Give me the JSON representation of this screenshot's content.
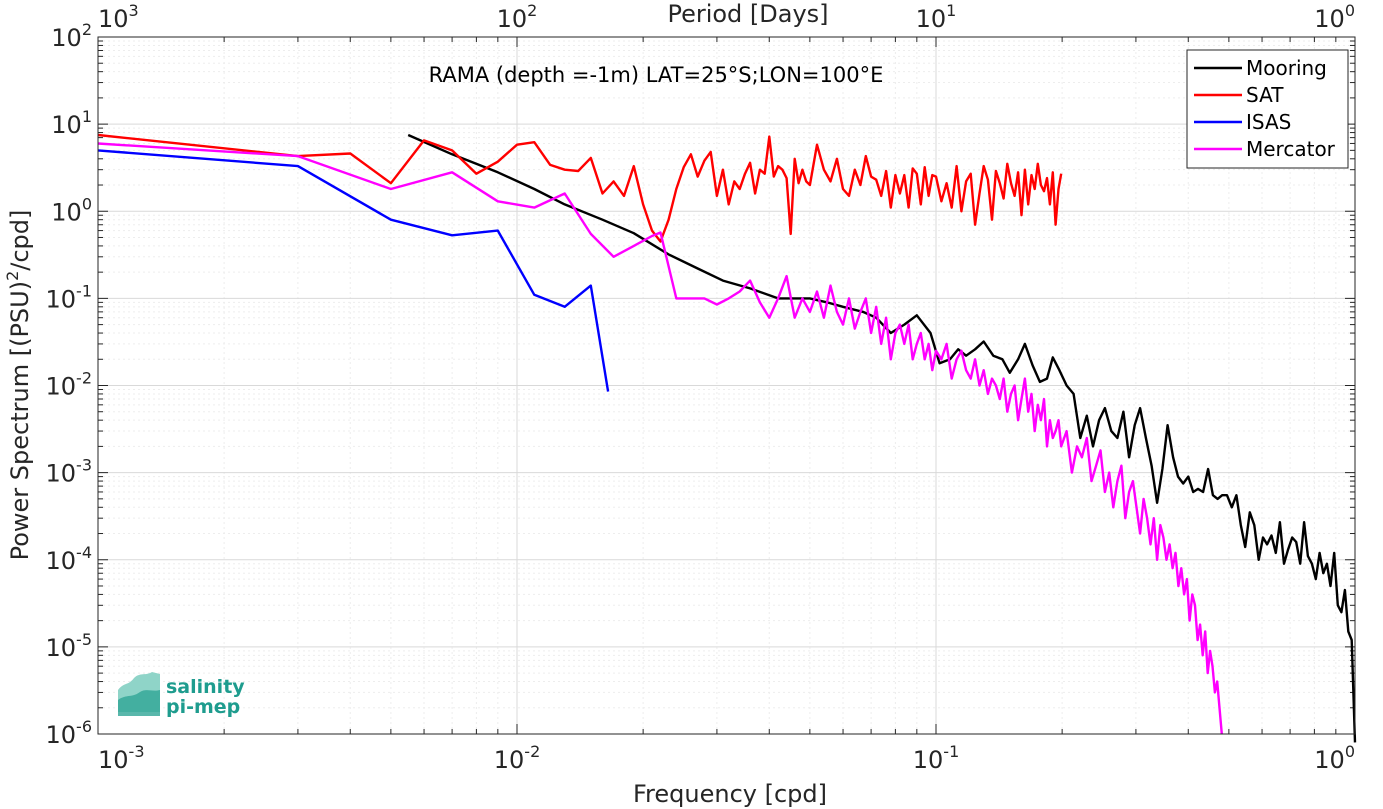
{
  "chart_data": {
    "type": "line",
    "title": "RAMA (depth =-1m) LAT=25°S;LON=100°E",
    "xlabel": "Frequency [cpd]",
    "ylabel_main": "Power Spectrum [(PSU)",
    "ylabel_sup": "2",
    "ylabel_tail": "/cpd]",
    "top_xlabel": "Period [Days]",
    "xscale": "log",
    "yscale": "log",
    "xlim": [
      0.001,
      1
    ],
    "ylim": [
      1e-06,
      100
    ],
    "grid": true,
    "legend_position": "top-right",
    "x_ticks": [
      {
        "base": "10",
        "exp": "-3"
      },
      {
        "base": "10",
        "exp": "-2"
      },
      {
        "base": "10",
        "exp": "-1"
      },
      {
        "base": "10",
        "exp": "0"
      }
    ],
    "top_ticks": [
      {
        "base": "10",
        "exp": "3"
      },
      {
        "base": "10",
        "exp": "2"
      },
      {
        "base": "10",
        "exp": "1"
      },
      {
        "base": "10",
        "exp": "0"
      }
    ],
    "y_ticks": [
      {
        "base": "10",
        "exp": "2"
      },
      {
        "base": "10",
        "exp": "1"
      },
      {
        "base": "10",
        "exp": "0"
      },
      {
        "base": "10",
        "exp": "-1"
      },
      {
        "base": "10",
        "exp": "-2"
      },
      {
        "base": "10",
        "exp": "-3"
      },
      {
        "base": "10",
        "exp": "-4"
      },
      {
        "base": "10",
        "exp": "-5"
      },
      {
        "base": "10",
        "exp": "-6"
      }
    ],
    "series": [
      {
        "name": "Mooring",
        "color": "#000000",
        "x": [
          0.0055,
          0.007,
          0.009,
          0.011,
          0.013,
          0.016,
          0.019,
          0.023,
          0.027,
          0.031,
          0.036,
          0.042,
          0.046,
          0.05,
          0.055,
          0.06,
          0.067,
          0.072,
          0.078,
          0.084,
          0.09,
          0.097,
          0.102,
          0.108,
          0.113,
          0.118,
          0.124,
          0.13,
          0.137,
          0.144,
          0.15,
          0.157,
          0.163,
          0.17,
          0.177,
          0.184,
          0.19,
          0.197,
          0.205,
          0.213,
          0.221,
          0.229,
          0.237,
          0.245,
          0.253,
          0.262,
          0.271,
          0.28,
          0.289,
          0.298,
          0.307,
          0.317,
          0.327,
          0.337,
          0.347,
          0.357,
          0.368,
          0.378,
          0.389,
          0.4,
          0.411,
          0.422,
          0.434,
          0.446,
          0.458,
          0.47,
          0.482,
          0.495,
          0.508,
          0.521,
          0.534,
          0.547,
          0.561,
          0.575,
          0.589,
          0.603,
          0.617,
          0.632,
          0.647,
          0.662,
          0.677,
          0.692,
          0.708,
          0.724,
          0.74,
          0.756,
          0.772,
          0.789,
          0.806,
          0.823,
          0.84,
          0.857,
          0.874,
          0.892,
          0.91,
          0.928,
          0.946,
          0.964,
          0.982,
          1.0
        ],
        "y": [
          7.5,
          4.5,
          2.8,
          1.8,
          1.2,
          0.8,
          0.56,
          0.32,
          0.22,
          0.16,
          0.13,
          0.1,
          0.1,
          0.1,
          0.09,
          0.08,
          0.07,
          0.06,
          0.04,
          0.05,
          0.064,
          0.04,
          0.018,
          0.02,
          0.026,
          0.022,
          0.026,
          0.032,
          0.022,
          0.02,
          0.014,
          0.02,
          0.03,
          0.017,
          0.011,
          0.012,
          0.021,
          0.015,
          0.01,
          0.008,
          0.0025,
          0.0045,
          0.002,
          0.004,
          0.0055,
          0.003,
          0.0025,
          0.005,
          0.0015,
          0.0035,
          0.0055,
          0.0025,
          0.0012,
          0.00045,
          0.0011,
          0.0035,
          0.0015,
          0.0009,
          0.00075,
          0.0009,
          0.0006,
          0.00065,
          0.0006,
          0.0011,
          0.00055,
          0.0005,
          0.00055,
          0.00055,
          0.0004,
          0.00055,
          0.00025,
          0.00014,
          0.00035,
          0.00025,
          0.0001,
          0.00018,
          0.00015,
          0.00019,
          0.00012,
          0.00027,
          9e-05,
          0.00013,
          0.00018,
          0.00016,
          9e-05,
          0.00027,
          0.00011,
          9e-05,
          6e-05,
          0.00012,
          7e-05,
          9e-05,
          5e-05,
          0.00012,
          3e-05,
          2.5e-05,
          4.5e-05,
          1.5e-05,
          1.2e-05,
          8e-07
        ]
      },
      {
        "name": "SAT",
        "color": "#ff0000",
        "x": [
          0.001,
          0.003,
          0.004,
          0.005,
          0.006,
          0.007,
          0.008,
          0.009,
          0.01,
          0.011,
          0.012,
          0.013,
          0.014,
          0.015,
          0.016,
          0.017,
          0.018,
          0.019,
          0.02,
          0.021,
          0.022,
          0.023,
          0.024,
          0.025,
          0.026,
          0.027,
          0.028,
          0.029,
          0.03,
          0.031,
          0.032,
          0.033,
          0.034,
          0.035,
          0.036,
          0.037,
          0.038,
          0.039,
          0.04,
          0.041,
          0.042,
          0.043,
          0.044,
          0.045,
          0.046,
          0.047,
          0.048,
          0.049,
          0.05,
          0.052,
          0.054,
          0.056,
          0.058,
          0.06,
          0.062,
          0.064,
          0.066,
          0.068,
          0.07,
          0.072,
          0.074,
          0.076,
          0.078,
          0.08,
          0.082,
          0.084,
          0.086,
          0.088,
          0.09,
          0.092,
          0.094,
          0.096,
          0.098,
          0.1,
          0.103,
          0.106,
          0.109,
          0.112,
          0.115,
          0.118,
          0.121,
          0.124,
          0.127,
          0.13,
          0.133,
          0.136,
          0.139,
          0.142,
          0.145,
          0.148,
          0.151,
          0.154,
          0.157,
          0.16,
          0.163,
          0.166,
          0.169,
          0.172,
          0.175,
          0.178,
          0.181,
          0.184,
          0.187,
          0.19,
          0.193,
          0.196,
          0.199
        ],
        "y": [
          7.5,
          4.3,
          4.6,
          2.1,
          6.5,
          5.0,
          2.7,
          3.7,
          5.8,
          6.2,
          3.4,
          3.0,
          2.9,
          4.1,
          1.6,
          2.2,
          1.5,
          3.3,
          1.2,
          0.6,
          0.45,
          0.8,
          1.8,
          3.2,
          4.5,
          2.5,
          3.8,
          4.8,
          1.5,
          3.0,
          1.2,
          2.2,
          1.8,
          2.7,
          3.6,
          1.6,
          3.0,
          2.7,
          7.2,
          2.5,
          3.3,
          3.0,
          2.4,
          0.55,
          4.0,
          2.1,
          3.0,
          2.2,
          2.0,
          5.8,
          3.0,
          2.2,
          4.0,
          1.8,
          1.5,
          3.0,
          2.0,
          4.3,
          2.5,
          2.3,
          1.5,
          2.9,
          1.1,
          2.6,
          1.6,
          2.6,
          1.1,
          3.1,
          2.7,
          1.2,
          3.2,
          1.5,
          2.6,
          2.5,
          1.3,
          2.1,
          1.1,
          3.3,
          1.0,
          2.2,
          2.7,
          0.7,
          1.6,
          3.3,
          2.3,
          0.8,
          2.9,
          2.1,
          1.4,
          3.5,
          2.1,
          1.5,
          2.8,
          0.9,
          3.0,
          1.2,
          2.6,
          1.8,
          3.5,
          2.0,
          1.7,
          2.4,
          1.2,
          2.8,
          0.7,
          1.8,
          2.7
        ]
      },
      {
        "name": "ISAS",
        "color": "#0000ff",
        "x": [
          0.001,
          0.003,
          0.005,
          0.007,
          0.009,
          0.011,
          0.013,
          0.015,
          0.0165
        ],
        "y": [
          5.0,
          3.3,
          0.8,
          0.53,
          0.6,
          0.11,
          0.08,
          0.14,
          0.0085
        ]
      },
      {
        "name": "Mercator",
        "color": "#ff00ff",
        "x": [
          0.001,
          0.003,
          0.005,
          0.007,
          0.009,
          0.011,
          0.013,
          0.015,
          0.017,
          0.019,
          0.021,
          0.022,
          0.024,
          0.026,
          0.028,
          0.03,
          0.032,
          0.034,
          0.036,
          0.038,
          0.04,
          0.042,
          0.044,
          0.046,
          0.048,
          0.05,
          0.052,
          0.054,
          0.056,
          0.058,
          0.06,
          0.062,
          0.064,
          0.066,
          0.068,
          0.07,
          0.072,
          0.074,
          0.076,
          0.078,
          0.08,
          0.082,
          0.084,
          0.086,
          0.088,
          0.09,
          0.092,
          0.094,
          0.096,
          0.098,
          0.1,
          0.103,
          0.106,
          0.109,
          0.112,
          0.115,
          0.118,
          0.121,
          0.124,
          0.127,
          0.13,
          0.133,
          0.136,
          0.139,
          0.142,
          0.145,
          0.148,
          0.151,
          0.154,
          0.157,
          0.16,
          0.163,
          0.166,
          0.169,
          0.172,
          0.175,
          0.178,
          0.181,
          0.184,
          0.187,
          0.19,
          0.193,
          0.196,
          0.199,
          0.205,
          0.211,
          0.217,
          0.223,
          0.229,
          0.235,
          0.241,
          0.247,
          0.253,
          0.259,
          0.265,
          0.271,
          0.277,
          0.283,
          0.289,
          0.295,
          0.301,
          0.307,
          0.313,
          0.319,
          0.325,
          0.331,
          0.337,
          0.343,
          0.349,
          0.355,
          0.361,
          0.367,
          0.373,
          0.379,
          0.385,
          0.391,
          0.397,
          0.403,
          0.409,
          0.415,
          0.421,
          0.427,
          0.433,
          0.439,
          0.445,
          0.451,
          0.457,
          0.463,
          0.469,
          0.475,
          0.481
        ],
        "y": [
          6.0,
          4.3,
          1.8,
          2.8,
          1.3,
          1.1,
          1.6,
          0.55,
          0.3,
          0.4,
          0.52,
          0.57,
          0.1,
          0.1,
          0.1,
          0.085,
          0.1,
          0.12,
          0.16,
          0.09,
          0.06,
          0.1,
          0.18,
          0.06,
          0.1,
          0.07,
          0.12,
          0.06,
          0.14,
          0.07,
          0.05,
          0.1,
          0.045,
          0.07,
          0.1,
          0.04,
          0.08,
          0.03,
          0.06,
          0.02,
          0.04,
          0.05,
          0.03,
          0.05,
          0.02,
          0.03,
          0.04,
          0.02,
          0.03,
          0.015,
          0.025,
          0.02,
          0.03,
          0.012,
          0.02,
          0.025,
          0.015,
          0.012,
          0.02,
          0.01,
          0.015,
          0.008,
          0.012,
          0.01,
          0.007,
          0.012,
          0.005,
          0.008,
          0.01,
          0.004,
          0.007,
          0.012,
          0.005,
          0.008,
          0.003,
          0.006,
          0.004,
          0.007,
          0.002,
          0.004,
          0.0025,
          0.003,
          0.004,
          0.002,
          0.003,
          0.001,
          0.002,
          0.0015,
          0.0025,
          0.0008,
          0.0012,
          0.0018,
          0.0006,
          0.001,
          0.0004,
          0.0008,
          0.0012,
          0.0003,
          0.0006,
          0.0008,
          0.0004,
          0.0002,
          0.0005,
          0.0003,
          0.00015,
          0.0003,
          0.0001,
          0.00025,
          0.00018,
          0.0001,
          0.00015,
          8e-05,
          0.00012,
          5e-05,
          8e-05,
          4e-05,
          6e-05,
          2e-05,
          4e-05,
          3e-05,
          1.2e-05,
          1.8e-05,
          8e-06,
          1.5e-05,
          5e-06,
          9e-06,
          6e-06,
          3e-06,
          4e-06,
          2e-06,
          1e-06
        ]
      }
    ]
  },
  "logo": {
    "line1": "salinity",
    "line2": "pi-mep"
  }
}
